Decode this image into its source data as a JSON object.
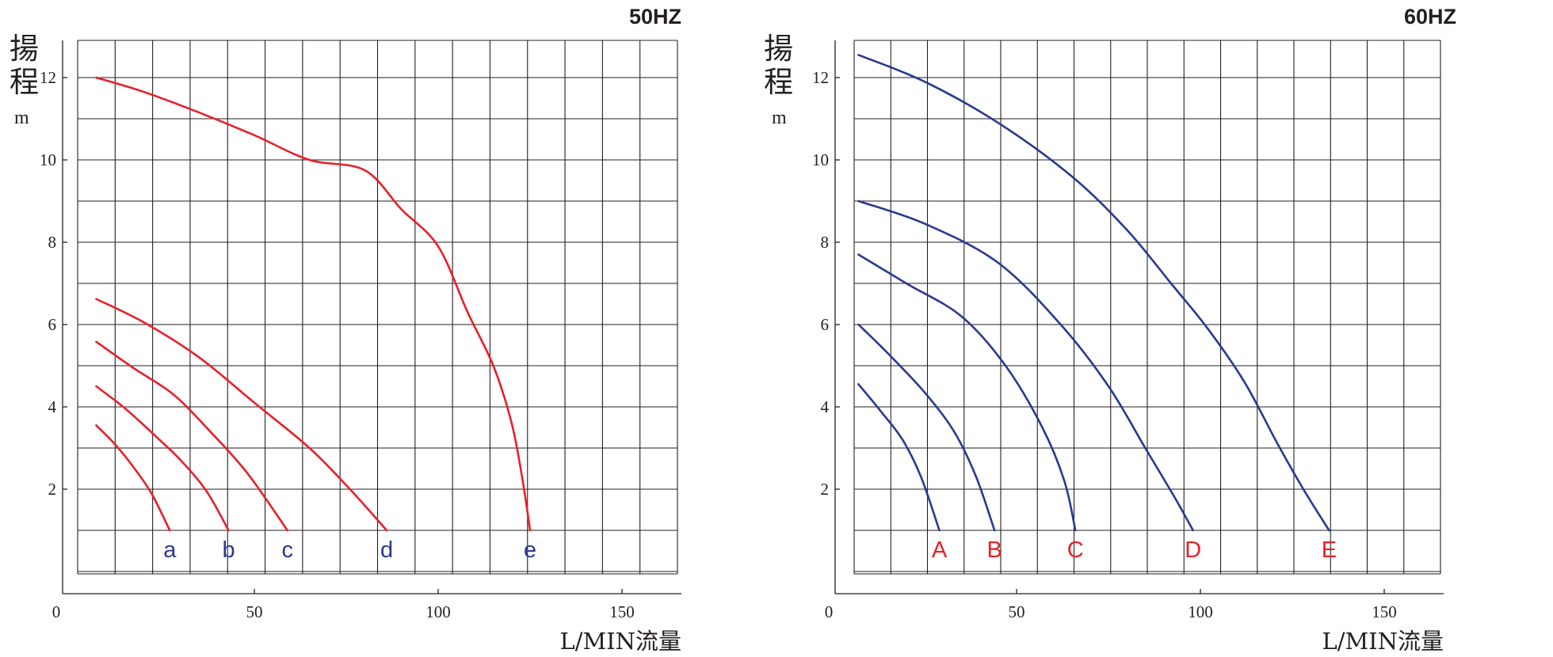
{
  "chart_data": [
    {
      "type": "line",
      "title": "50HZ",
      "ylabel_chars": [
        "揚",
        "程"
      ],
      "yunit": "m",
      "xlabel": "L/MIN流量",
      "x_origin_label": "0",
      "xticks": [
        "50",
        "100",
        "150"
      ],
      "yticks": [
        "2",
        "4",
        "6",
        "8",
        "10",
        "12"
      ],
      "xlim": [
        0,
        160
      ],
      "ylim": [
        -0.5,
        13
      ],
      "grid": true,
      "colors": {
        "curve": "#e8202a",
        "label": "#2a3990"
      },
      "series": [
        {
          "name": "a",
          "points": [
            [
              7,
              3.55
            ],
            [
              12,
              3.1
            ],
            [
              17,
              2.55
            ],
            [
              22,
              1.9
            ],
            [
              27,
              1.0
            ]
          ]
        },
        {
          "name": "b",
          "points": [
            [
              7,
              4.5
            ],
            [
              15,
              3.95
            ],
            [
              23,
              3.3
            ],
            [
              30,
              2.7
            ],
            [
              37,
              1.95
            ],
            [
              43,
              1.0
            ]
          ]
        },
        {
          "name": "c",
          "points": [
            [
              7,
              5.58
            ],
            [
              17,
              4.95
            ],
            [
              28,
              4.3
            ],
            [
              38,
              3.4
            ],
            [
              48,
              2.4
            ],
            [
              59,
              1.0
            ]
          ]
        },
        {
          "name": "d",
          "points": [
            [
              7,
              6.62
            ],
            [
              20,
              6.05
            ],
            [
              35,
              5.2
            ],
            [
              50,
              4.1
            ],
            [
              65,
              3.0
            ],
            [
              76,
              2.0
            ],
            [
              86,
              1.0
            ]
          ]
        },
        {
          "name": "e",
          "points": [
            [
              7,
              12.0
            ],
            [
              20,
              11.65
            ],
            [
              35,
              11.15
            ],
            [
              50,
              10.6
            ],
            [
              65,
              10.0
            ],
            [
              80,
              9.75
            ],
            [
              90,
              8.8
            ],
            [
              100,
              7.9
            ],
            [
              108,
              6.3
            ],
            [
              115,
              5.0
            ],
            [
              120,
              3.6
            ],
            [
              123,
              2.2
            ],
            [
              125,
              1.0
            ]
          ]
        }
      ]
    },
    {
      "type": "line",
      "title": "60HZ",
      "ylabel_chars": [
        "揚",
        "程"
      ],
      "yunit": "m",
      "xlabel": "L/MIN流量",
      "x_origin_label": "0",
      "xticks": [
        "50",
        "100",
        "150"
      ],
      "yticks": [
        "2",
        "4",
        "6",
        "8",
        "10",
        "12"
      ],
      "xlim": [
        0,
        160
      ],
      "ylim": [
        -0.5,
        13
      ],
      "grid": true,
      "colors": {
        "curve": "#2a3990",
        "label": "#e8202a"
      },
      "series": [
        {
          "name": "A",
          "points": [
            [
              7,
              4.55
            ],
            [
              13,
              3.9
            ],
            [
              19,
              3.2
            ],
            [
              24,
              2.3
            ],
            [
              29,
              1.0
            ]
          ]
        },
        {
          "name": "B",
          "points": [
            [
              7,
              6.0
            ],
            [
              15,
              5.3
            ],
            [
              25,
              4.35
            ],
            [
              33,
              3.4
            ],
            [
              39,
              2.3
            ],
            [
              44,
              1.0
            ]
          ]
        },
        {
          "name": "C",
          "points": [
            [
              7,
              7.7
            ],
            [
              20,
              7.0
            ],
            [
              35,
              6.2
            ],
            [
              47,
              5.0
            ],
            [
              57,
              3.5
            ],
            [
              63,
              2.2
            ],
            [
              66,
              1.0
            ]
          ]
        },
        {
          "name": "D",
          "points": [
            [
              7,
              9.0
            ],
            [
              25,
              8.45
            ],
            [
              45,
              7.5
            ],
            [
              62,
              6.0
            ],
            [
              75,
              4.5
            ],
            [
              85,
              3.0
            ],
            [
              93,
              1.8
            ],
            [
              98,
              1.0
            ]
          ]
        },
        {
          "name": "E",
          "points": [
            [
              7,
              12.55
            ],
            [
              25,
              11.9
            ],
            [
              45,
              10.9
            ],
            [
              65,
              9.6
            ],
            [
              80,
              8.3
            ],
            [
              92,
              7.0
            ],
            [
              102,
              5.9
            ],
            [
              112,
              4.6
            ],
            [
              121,
              3.1
            ],
            [
              128,
              2.0
            ],
            [
              135,
              1.0
            ]
          ]
        }
      ]
    }
  ]
}
